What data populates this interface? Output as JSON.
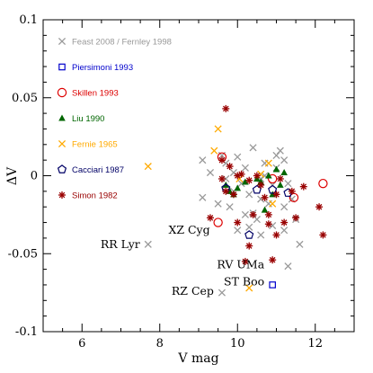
{
  "chart_data": {
    "type": "scatter",
    "title": "",
    "xlabel": "V mag",
    "ylabel": "ΔV",
    "xlim": [
      5,
      13
    ],
    "ylim": [
      -0.1,
      0.1
    ],
    "x_ticks": [
      6,
      8,
      10,
      12
    ],
    "y_ticks": [
      {
        "value": -0.1,
        "label": "-0.1"
      },
      {
        "value": -0.05,
        "label": "-0.05"
      },
      {
        "value": 0,
        "label": "0"
      },
      {
        "value": 0.05,
        "label": "0.05"
      },
      {
        "value": 0.1,
        "label": "0.1"
      }
    ],
    "legend_position": "top-left",
    "series": [
      {
        "name": "Feast 2008 / Fernley 1998",
        "marker": "cross",
        "color": "#999999",
        "points": [
          [
            7.7,
            -0.044
          ],
          [
            9.6,
            -0.075
          ],
          [
            9.1,
            0.01
          ],
          [
            9.3,
            0.002
          ],
          [
            9.1,
            -0.014
          ],
          [
            9.5,
            -0.018
          ],
          [
            9.7,
            0.008
          ],
          [
            9.8,
            -0.02
          ],
          [
            9.9,
            0.002
          ],
          [
            10.0,
            0.012
          ],
          [
            10.1,
            -0.005
          ],
          [
            10.2,
            0.005
          ],
          [
            10.3,
            -0.012
          ],
          [
            10.4,
            -0.024
          ],
          [
            10.5,
            -0.028
          ],
          [
            10.6,
            -0.002
          ],
          [
            10.7,
            0.0
          ],
          [
            10.7,
            0.008
          ],
          [
            10.8,
            -0.018
          ],
          [
            10.9,
            -0.006
          ],
          [
            11.0,
            0.013
          ],
          [
            11.1,
            0.016
          ],
          [
            11.2,
            0.01
          ],
          [
            11.3,
            -0.005
          ],
          [
            11.4,
            -0.015
          ],
          [
            11.5,
            -0.028
          ],
          [
            11.6,
            -0.044
          ],
          [
            11.3,
            -0.058
          ],
          [
            11.2,
            -0.035
          ],
          [
            10.9,
            -0.032
          ],
          [
            10.6,
            -0.038
          ],
          [
            10.3,
            -0.033
          ],
          [
            10.2,
            -0.025
          ],
          [
            9.9,
            -0.01
          ],
          [
            10.4,
            0.018
          ],
          [
            11.0,
            0.005
          ],
          [
            10.0,
            -0.035
          ],
          [
            9.7,
            -0.002
          ],
          [
            10.6,
            -0.015
          ],
          [
            11.2,
            -0.02
          ],
          [
            9.6,
            0.013
          ]
        ]
      },
      {
        "name": "Piersimoni 1993",
        "marker": "square",
        "color": "#0000cc",
        "points": [
          [
            10.9,
            -0.07
          ]
        ]
      },
      {
        "name": "Skillen 1993",
        "marker": "circle",
        "color": "#dd0000",
        "points": [
          [
            9.6,
            0.012
          ],
          [
            9.5,
            -0.03
          ],
          [
            10.9,
            -0.002
          ],
          [
            11.45,
            -0.014
          ],
          [
            12.2,
            -0.005
          ]
        ]
      },
      {
        "name": "Liu 1990",
        "marker": "triangle",
        "color": "#006600",
        "points": [
          [
            9.7,
            -0.006
          ],
          [
            9.8,
            -0.01
          ],
          [
            10.0,
            -0.008
          ],
          [
            10.2,
            -0.004
          ],
          [
            10.5,
            -0.002
          ],
          [
            10.8,
            0.0
          ],
          [
            10.9,
            -0.012
          ],
          [
            11.0,
            0.004
          ],
          [
            11.1,
            -0.006
          ],
          [
            10.7,
            -0.022
          ],
          [
            10.6,
            -0.004
          ],
          [
            9.9,
            -0.012
          ],
          [
            11.2,
            0.002
          ]
        ]
      },
      {
        "name": "Fernie 1965",
        "marker": "x",
        "color": "#ffaa00",
        "points": [
          [
            7.7,
            0.006
          ],
          [
            9.5,
            0.03
          ],
          [
            9.4,
            0.016
          ],
          [
            10.8,
            0.008
          ],
          [
            10.9,
            -0.018
          ],
          [
            10.3,
            -0.072
          ],
          [
            10.05,
            -0.002
          ],
          [
            10.6,
            0.001
          ]
        ]
      },
      {
        "name": "Cacciari 1987",
        "marker": "pentagon",
        "color": "#000066",
        "points": [
          [
            9.7,
            -0.008
          ],
          [
            10.5,
            -0.009
          ],
          [
            10.3,
            -0.038
          ],
          [
            11.3,
            -0.011
          ],
          [
            10.9,
            -0.009
          ]
        ]
      },
      {
        "name": "Simon 1982",
        "marker": "asterisk",
        "color": "#990000",
        "points": [
          [
            9.7,
            0.043
          ],
          [
            9.3,
            -0.027
          ],
          [
            9.6,
            0.01
          ],
          [
            9.6,
            -0.002
          ],
          [
            9.7,
            -0.01
          ],
          [
            9.9,
            -0.012
          ],
          [
            10.0,
            -0.03
          ],
          [
            10.1,
            0.001
          ],
          [
            10.2,
            -0.055
          ],
          [
            10.3,
            -0.045
          ],
          [
            10.4,
            -0.025
          ],
          [
            10.6,
            -0.006
          ],
          [
            10.7,
            -0.014
          ],
          [
            10.8,
            -0.031
          ],
          [
            10.9,
            -0.054
          ],
          [
            11.0,
            -0.012
          ],
          [
            11.1,
            -0.002
          ],
          [
            11.2,
            -0.03
          ],
          [
            11.4,
            -0.01
          ],
          [
            11.5,
            -0.027
          ],
          [
            11.7,
            -0.007
          ],
          [
            12.1,
            -0.02
          ],
          [
            12.2,
            -0.038
          ],
          [
            10.3,
            -0.003
          ],
          [
            10.5,
            0.0
          ],
          [
            10.8,
            -0.025
          ],
          [
            11.0,
            -0.038
          ],
          [
            9.8,
            0.006
          ],
          [
            10.0,
            0.0
          ]
        ]
      }
    ],
    "annotations": [
      {
        "text": "RR Lyr",
        "x": 7.7,
        "y": -0.044
      },
      {
        "text": "XZ Cyg",
        "x": 9.5,
        "y": -0.035
      },
      {
        "text": "RV UMa",
        "x": 10.9,
        "y": -0.057
      },
      {
        "text": "ST Boo",
        "x": 10.9,
        "y": -0.068
      },
      {
        "text": "RZ Cep",
        "x": 9.6,
        "y": -0.074
      }
    ]
  }
}
